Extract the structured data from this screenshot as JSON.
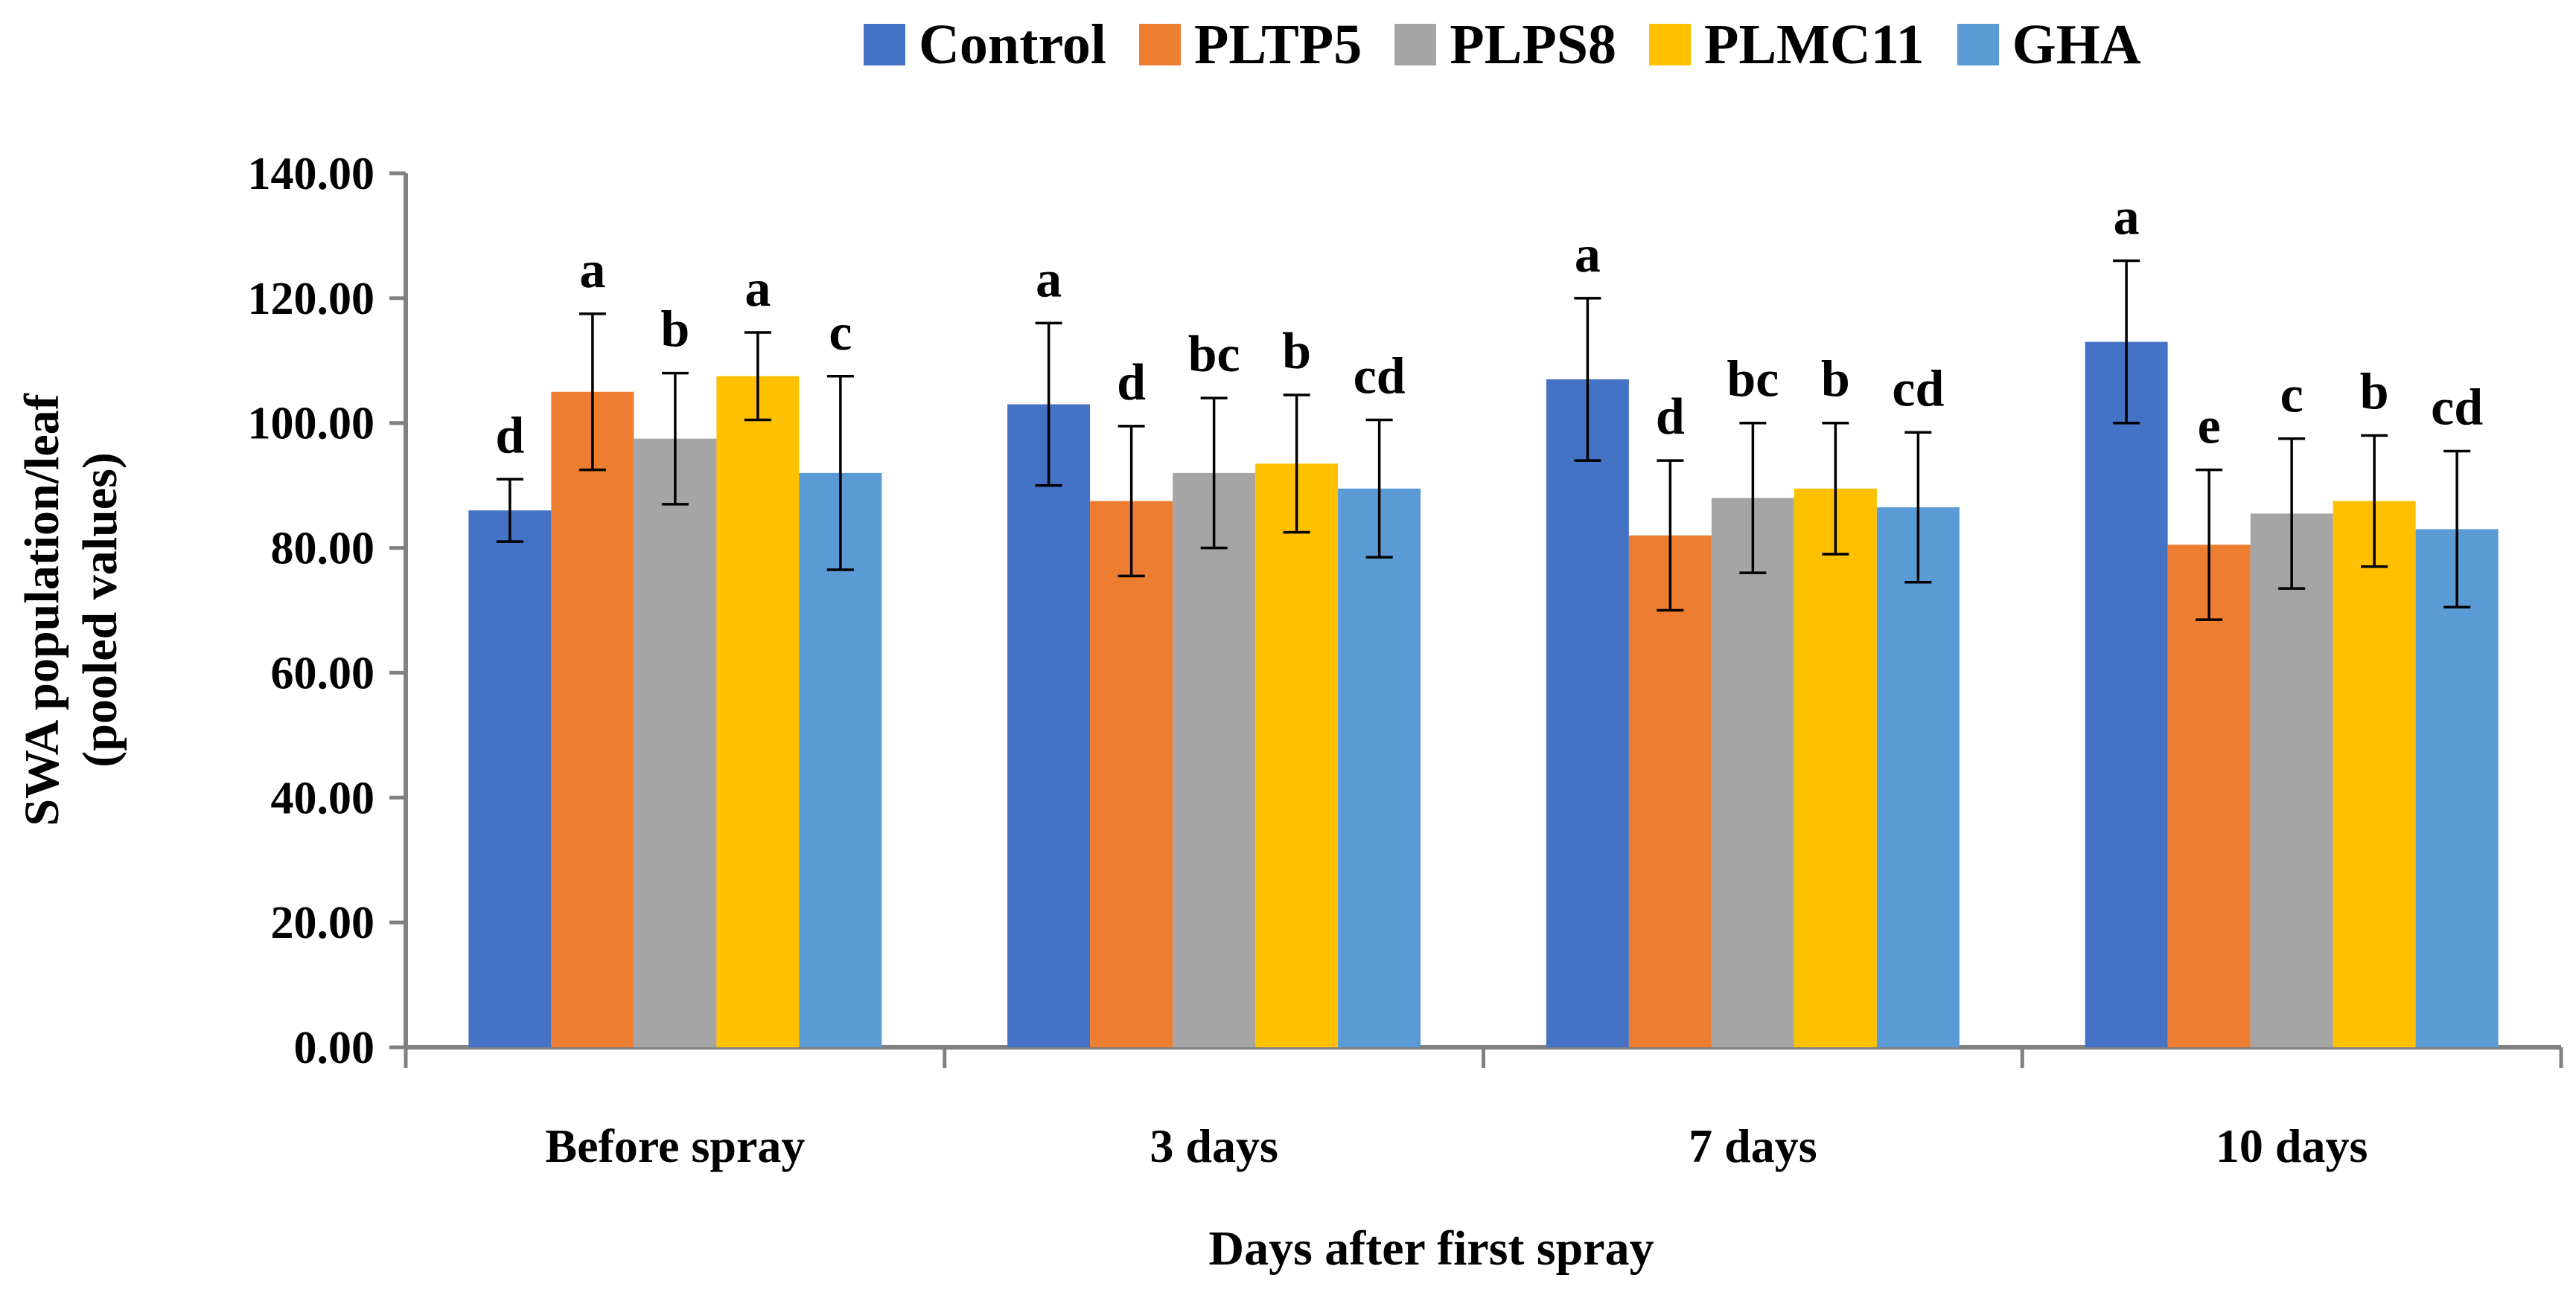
{
  "chart_data": {
    "type": "bar",
    "title": "",
    "xlabel": "Days after first spray",
    "ylabel_line1": "SWA population/leaf",
    "ylabel_line2": "(pooled values)",
    "ylim": [
      0,
      140
    ],
    "yticks": [
      "0.00",
      "20.00",
      "40.00",
      "60.00",
      "80.00",
      "100.00",
      "120.00",
      "140.00"
    ],
    "grid": false,
    "legend_position": "top",
    "categories": [
      "Before spray",
      "3 days",
      "7 days",
      "10 days"
    ],
    "series": [
      {
        "name": "Control",
        "color": "#4472C4",
        "values": [
          86,
          103,
          107,
          113
        ],
        "errors": [
          5,
          13,
          13,
          13
        ],
        "labels": [
          "d",
          "a",
          "a",
          "a"
        ]
      },
      {
        "name": "PLTP5",
        "color": "#ED7D31",
        "values": [
          105,
          87.5,
          82,
          80.5
        ],
        "errors": [
          12.5,
          12,
          12,
          12
        ],
        "labels": [
          "a",
          "d",
          "d",
          "e"
        ]
      },
      {
        "name": "PLPS8",
        "color": "#A5A5A5",
        "values": [
          97.5,
          92,
          88,
          85.5
        ],
        "errors": [
          10.5,
          12,
          12,
          12
        ],
        "labels": [
          "b",
          "bc",
          "bc",
          "c"
        ]
      },
      {
        "name": "PLMC11",
        "color": "#FFC000",
        "values": [
          107.5,
          93.5,
          89.5,
          87.5
        ],
        "errors": [
          7,
          11,
          10.5,
          10.5
        ],
        "labels": [
          "a",
          "b",
          "b",
          "b"
        ]
      },
      {
        "name": "GHA",
        "color": "#5B9BD5",
        "values": [
          92,
          89.5,
          86.5,
          83
        ],
        "errors": [
          15.5,
          11,
          12,
          12.5
        ],
        "labels": [
          "c",
          "cd",
          "cd",
          "cd"
        ]
      }
    ]
  }
}
